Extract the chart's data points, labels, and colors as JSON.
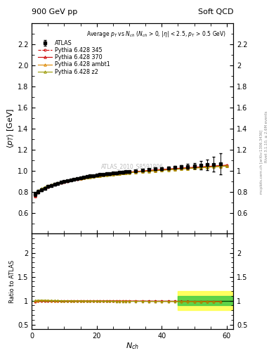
{
  "title_left": "900 GeV pp",
  "title_right": "Soft QCD",
  "ylabel_main": "$\\langle p_T \\rangle$ [GeV]",
  "ylabel_ratio": "Ratio to ATLAS",
  "xlabel": "$N_{ch}$",
  "annotation_main": "Average $p_T$ vs $N_{ch}$ ($N_{ch}$ > 0, $|\\eta|$ < 2.5, $p_T$ > 0.5 GeV)",
  "watermark": "ATLAS_2010_S8591806",
  "right_label1": "mcplots.cern.ch [arXiv:1306.3436]",
  "right_label2": "Rivet 3.1.10, ≥ 2.6M events",
  "ylim_main": [
    0.4,
    2.4
  ],
  "ylim_ratio": [
    0.4,
    2.4
  ],
  "xlim": [
    0,
    62
  ],
  "yticks_main": [
    0.6,
    0.8,
    1.0,
    1.2,
    1.4,
    1.6,
    1.8,
    2.0,
    2.2
  ],
  "yticks_ratio": [
    0.5,
    1.0,
    1.5,
    2.0
  ],
  "xticks": [
    0,
    20,
    40,
    60
  ],
  "atlas_x": [
    1,
    2,
    3,
    4,
    5,
    6,
    7,
    8,
    9,
    10,
    11,
    12,
    13,
    14,
    15,
    16,
    17,
    18,
    19,
    20,
    21,
    22,
    23,
    24,
    25,
    26,
    27,
    28,
    29,
    30,
    32,
    34,
    36,
    38,
    40,
    42,
    44,
    46,
    48,
    50,
    52,
    54,
    56,
    58
  ],
  "atlas_y": [
    0.775,
    0.8,
    0.818,
    0.834,
    0.848,
    0.86,
    0.87,
    0.88,
    0.889,
    0.897,
    0.905,
    0.912,
    0.919,
    0.926,
    0.932,
    0.938,
    0.943,
    0.948,
    0.953,
    0.957,
    0.962,
    0.966,
    0.97,
    0.974,
    0.977,
    0.981,
    0.984,
    0.987,
    0.99,
    0.993,
    0.999,
    1.004,
    1.01,
    1.015,
    1.02,
    1.025,
    1.03,
    1.035,
    1.04,
    1.045,
    1.05,
    1.055,
    1.06,
    1.065
  ],
  "atlas_yerr": [
    0.02,
    0.015,
    0.013,
    0.012,
    0.011,
    0.01,
    0.009,
    0.009,
    0.008,
    0.008,
    0.008,
    0.007,
    0.007,
    0.007,
    0.007,
    0.007,
    0.007,
    0.007,
    0.007,
    0.007,
    0.007,
    0.007,
    0.007,
    0.007,
    0.007,
    0.007,
    0.007,
    0.008,
    0.008,
    0.008,
    0.009,
    0.009,
    0.01,
    0.011,
    0.012,
    0.013,
    0.015,
    0.018,
    0.022,
    0.03,
    0.04,
    0.05,
    0.07,
    0.1
  ],
  "p345_x": [
    1,
    2,
    3,
    4,
    5,
    6,
    7,
    8,
    9,
    10,
    11,
    12,
    13,
    14,
    15,
    16,
    17,
    18,
    19,
    20,
    21,
    22,
    23,
    24,
    25,
    26,
    27,
    28,
    29,
    30,
    32,
    34,
    36,
    38,
    40,
    42,
    44,
    46,
    48,
    50,
    52,
    54,
    56,
    58,
    60
  ],
  "p345_y": [
    0.758,
    0.793,
    0.815,
    0.832,
    0.846,
    0.858,
    0.868,
    0.877,
    0.886,
    0.894,
    0.901,
    0.908,
    0.915,
    0.921,
    0.927,
    0.932,
    0.937,
    0.942,
    0.947,
    0.951,
    0.955,
    0.959,
    0.963,
    0.967,
    0.971,
    0.974,
    0.977,
    0.98,
    0.983,
    0.986,
    0.991,
    0.996,
    1.001,
    1.005,
    1.01,
    1.014,
    1.018,
    1.022,
    1.026,
    1.03,
    1.034,
    1.038,
    1.042,
    1.046,
    1.05
  ],
  "p370_x": [
    1,
    2,
    3,
    4,
    5,
    6,
    7,
    8,
    9,
    10,
    11,
    12,
    13,
    14,
    15,
    16,
    17,
    18,
    19,
    20,
    21,
    22,
    23,
    24,
    25,
    26,
    27,
    28,
    29,
    30,
    32,
    34,
    36,
    38,
    40,
    42,
    44,
    46,
    48,
    50,
    52,
    54,
    56,
    58,
    60
  ],
  "p370_y": [
    0.76,
    0.795,
    0.817,
    0.834,
    0.848,
    0.86,
    0.87,
    0.879,
    0.888,
    0.896,
    0.903,
    0.91,
    0.917,
    0.923,
    0.929,
    0.934,
    0.939,
    0.944,
    0.949,
    0.953,
    0.957,
    0.961,
    0.965,
    0.969,
    0.972,
    0.975,
    0.978,
    0.981,
    0.984,
    0.987,
    0.992,
    0.997,
    1.002,
    1.007,
    1.012,
    1.016,
    1.02,
    1.024,
    1.028,
    1.032,
    1.036,
    1.04,
    1.044,
    1.048,
    1.052
  ],
  "pambt1_x": [
    1,
    2,
    3,
    4,
    5,
    6,
    7,
    8,
    9,
    10,
    11,
    12,
    13,
    14,
    15,
    16,
    17,
    18,
    19,
    20,
    21,
    22,
    23,
    24,
    25,
    26,
    27,
    28,
    29,
    30,
    32,
    34,
    36,
    38,
    40,
    42,
    44,
    46,
    48,
    50,
    52,
    54,
    56,
    58,
    60
  ],
  "pambt1_y": [
    0.77,
    0.802,
    0.822,
    0.838,
    0.851,
    0.862,
    0.872,
    0.88,
    0.889,
    0.896,
    0.903,
    0.91,
    0.916,
    0.922,
    0.927,
    0.932,
    0.937,
    0.942,
    0.946,
    0.95,
    0.954,
    0.958,
    0.962,
    0.965,
    0.968,
    0.971,
    0.974,
    0.977,
    0.98,
    0.982,
    0.987,
    0.992,
    0.996,
    1.001,
    1.005,
    1.009,
    1.013,
    1.017,
    1.021,
    1.025,
    1.029,
    1.033,
    1.037,
    1.041,
    1.045
  ],
  "pz2_x": [
    1,
    2,
    3,
    4,
    5,
    6,
    7,
    8,
    9,
    10,
    11,
    12,
    13,
    14,
    15,
    16,
    17,
    18,
    19,
    20,
    21,
    22,
    23,
    24,
    25,
    26,
    27,
    28,
    29,
    30,
    32,
    34,
    36,
    38,
    40,
    42,
    44,
    46,
    48,
    50,
    52,
    54,
    56,
    58,
    60
  ],
  "pz2_y": [
    0.78,
    0.81,
    0.828,
    0.843,
    0.855,
    0.866,
    0.875,
    0.883,
    0.891,
    0.898,
    0.905,
    0.911,
    0.917,
    0.923,
    0.928,
    0.933,
    0.937,
    0.941,
    0.945,
    0.949,
    0.953,
    0.956,
    0.96,
    0.963,
    0.966,
    0.969,
    0.972,
    0.975,
    0.977,
    0.98,
    0.985,
    0.99,
    0.994,
    0.999,
    1.003,
    1.008,
    1.012,
    1.016,
    1.02,
    1.024,
    1.028,
    1.032,
    1.036,
    1.04,
    1.044
  ],
  "color_345": "#cc0000",
  "color_370": "#cc0000",
  "color_ambt1": "#dd8800",
  "color_z2": "#999900",
  "color_atlas": "#000000",
  "bg_color": "#ffffff"
}
